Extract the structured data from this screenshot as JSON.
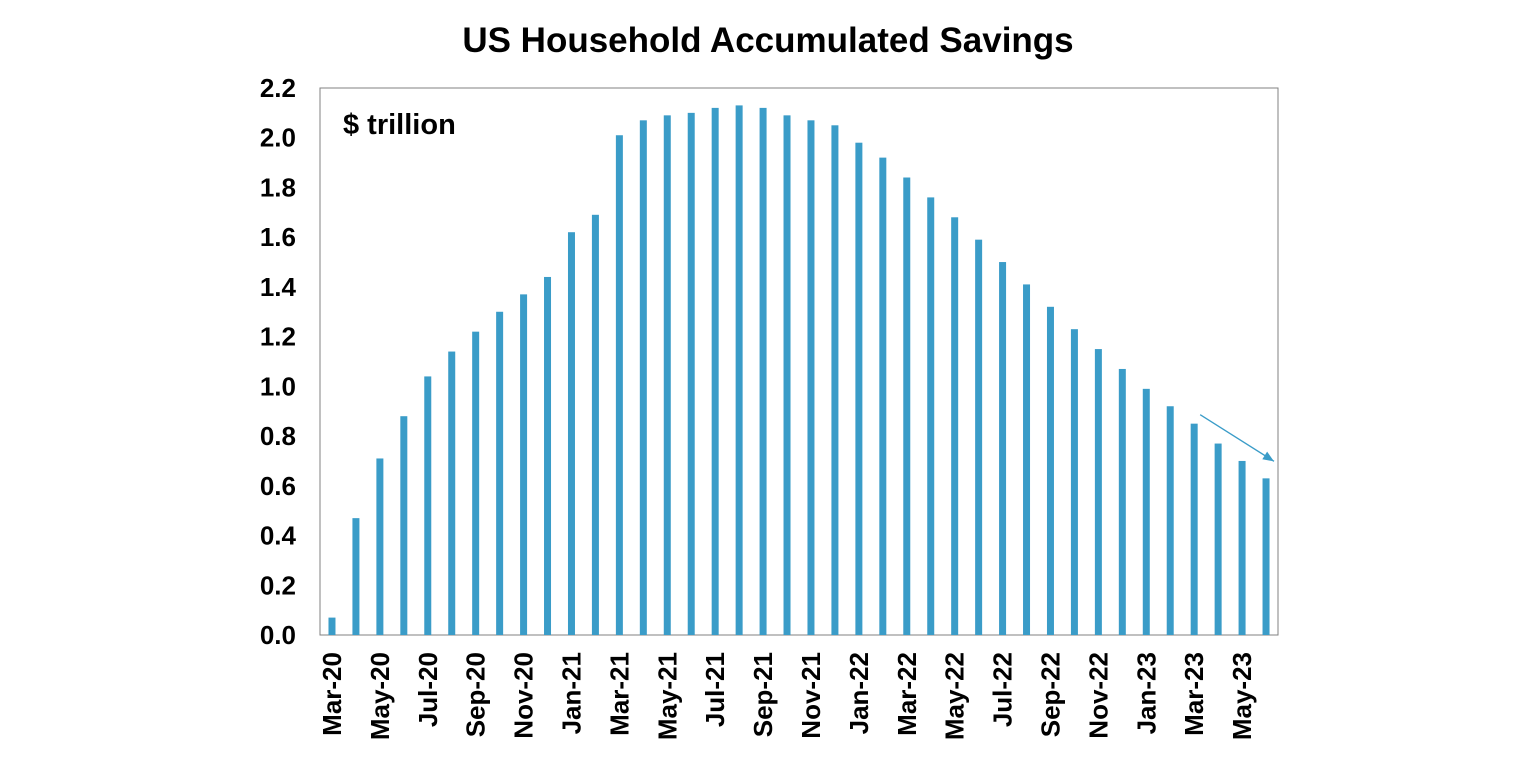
{
  "chart_data": {
    "type": "bar",
    "title": "US Household Accumulated Savings",
    "unit_label": "$ trillion",
    "xlabel": "",
    "ylabel": "",
    "ylim": [
      0,
      2.2
    ],
    "y_ticks": [
      "0.0",
      "0.2",
      "0.4",
      "0.6",
      "0.8",
      "1.0",
      "1.2",
      "1.4",
      "1.6",
      "1.8",
      "2.0",
      "2.2"
    ],
    "x_tick_labels": [
      "Mar-20",
      "May-20",
      "Jul-20",
      "Sep-20",
      "Nov-20",
      "Jan-21",
      "Mar-21",
      "May-21",
      "Jul-21",
      "Sep-21",
      "Nov-21",
      "Jan-22",
      "Mar-22",
      "May-22",
      "Jul-22",
      "Sep-22",
      "Nov-22",
      "Jan-23",
      "Mar-23",
      "May-23"
    ],
    "categories": [
      "Mar-20",
      "Apr-20",
      "May-20",
      "Jun-20",
      "Jul-20",
      "Aug-20",
      "Sep-20",
      "Oct-20",
      "Nov-20",
      "Dec-20",
      "Jan-21",
      "Feb-21",
      "Mar-21",
      "Apr-21",
      "May-21",
      "Jun-21",
      "Jul-21",
      "Aug-21",
      "Sep-21",
      "Oct-21",
      "Nov-21",
      "Dec-21",
      "Jan-22",
      "Feb-22",
      "Mar-22",
      "Apr-22",
      "May-22",
      "Jun-22",
      "Jul-22",
      "Aug-22",
      "Sep-22",
      "Oct-22",
      "Nov-22",
      "Dec-22",
      "Jan-23",
      "Feb-23",
      "Mar-23",
      "Apr-23",
      "May-23",
      "Jun-23"
    ],
    "values": [
      0.07,
      0.47,
      0.71,
      0.88,
      1.04,
      1.14,
      1.22,
      1.3,
      1.37,
      1.44,
      1.62,
      1.69,
      2.01,
      2.07,
      2.09,
      2.1,
      2.12,
      2.13,
      2.12,
      2.09,
      2.07,
      2.05,
      1.98,
      1.92,
      1.84,
      1.76,
      1.68,
      1.59,
      1.5,
      1.41,
      1.32,
      1.23,
      1.15,
      1.07,
      0.99,
      0.92,
      0.85,
      0.77,
      0.7,
      0.63
    ],
    "grid": false,
    "legend": "none",
    "colors": {
      "bar": "#3A9CC8",
      "arrow": "#3A9CC8",
      "axis": "#808080"
    },
    "annotation": {
      "type": "arrow",
      "from_category": "Mar-23",
      "to_category": "Jun-23",
      "meaning": "downward trend"
    }
  }
}
